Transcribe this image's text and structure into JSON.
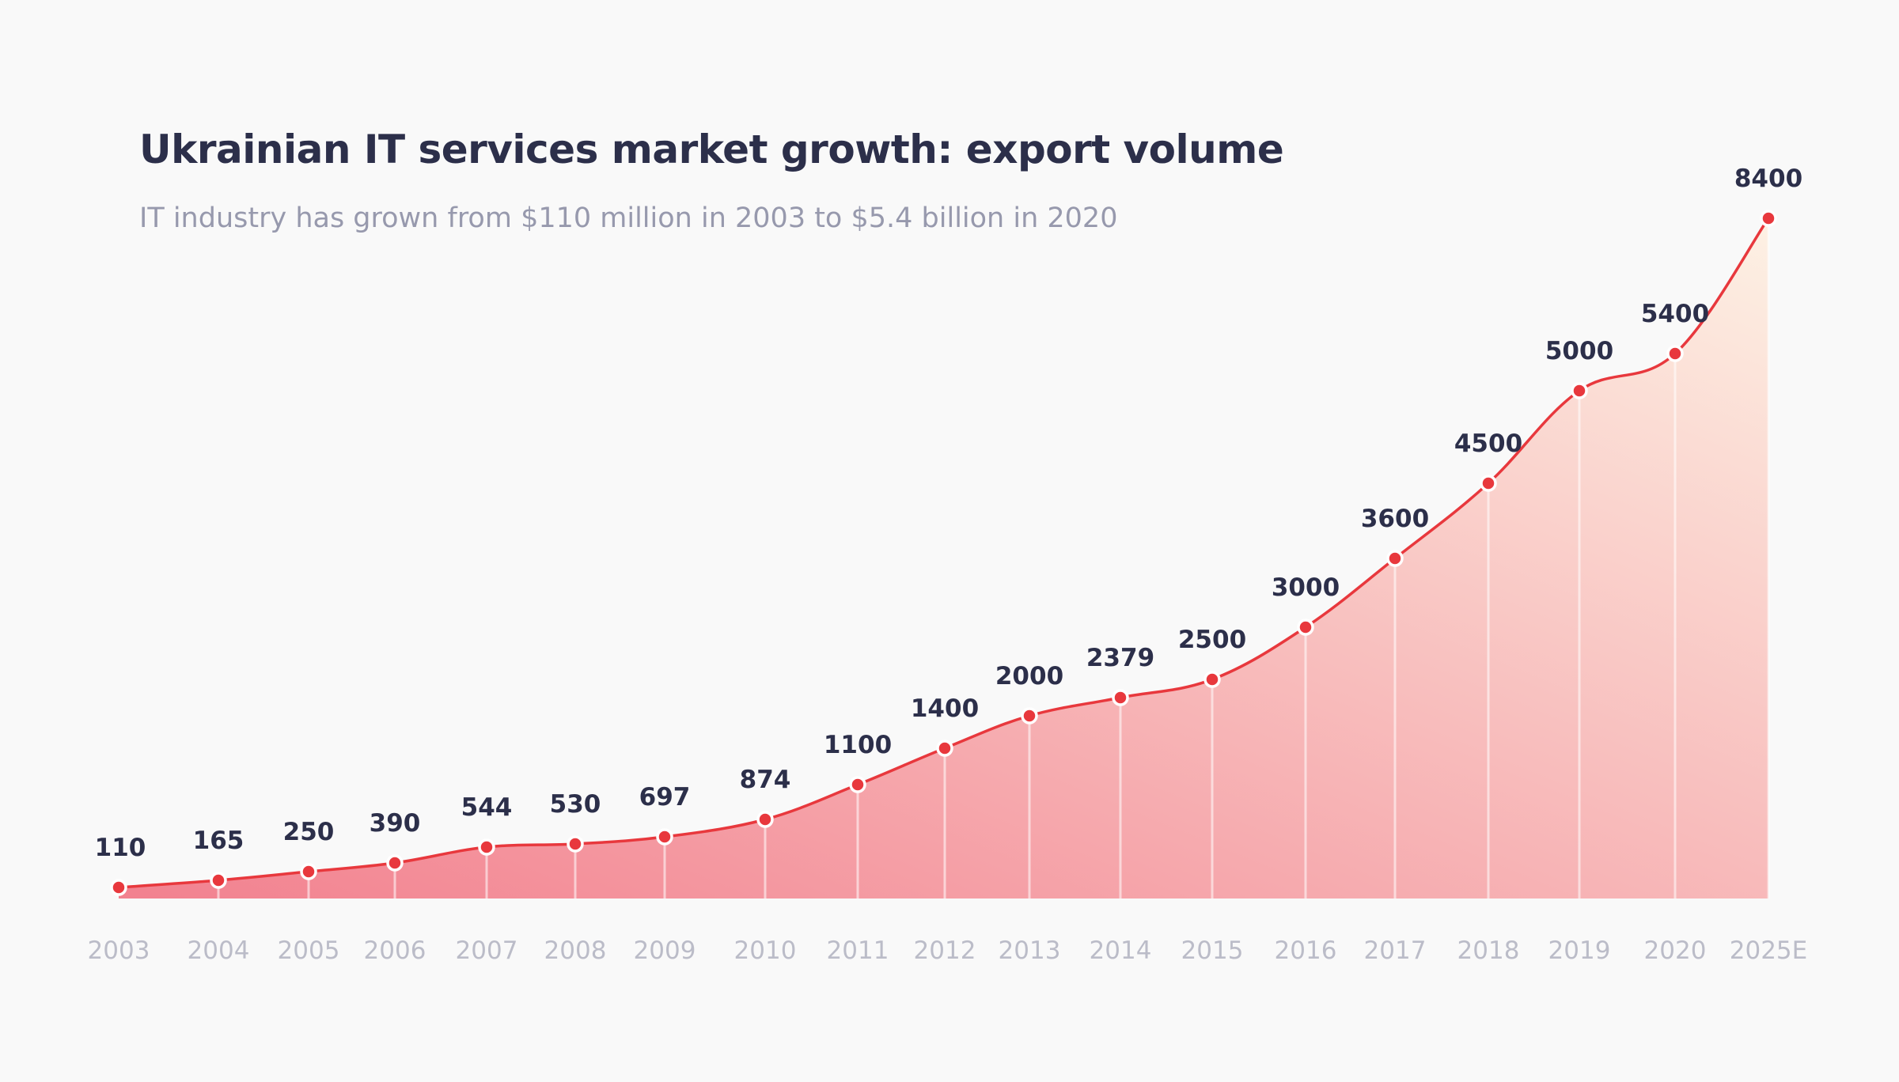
{
  "chart_data": {
    "type": "area",
    "title": "Ukrainian IT services market growth: export volume",
    "subtitle": "IT industry has grown from $110 million in 2003 to $5.4 billion in 2020",
    "categories": [
      "2003",
      "2004",
      "2005",
      "2006",
      "2007",
      "2008",
      "2009",
      "2010",
      "2011",
      "2012",
      "2013",
      "2014",
      "2015",
      "2016",
      "2017",
      "2018",
      "2019",
      "2020",
      "2025E"
    ],
    "values": [
      110,
      165,
      250,
      390,
      544,
      530,
      697,
      874,
      1100,
      1400,
      2000,
      2379,
      2500,
      3000,
      3600,
      4500,
      5000,
      5400,
      8400
    ],
    "data_labels": true,
    "grid": false,
    "legend": "none",
    "colors": {
      "line": "#e8383d",
      "marker": "#e8383d",
      "fill_start": "#f2818f",
      "fill_end": "#fdf1e4",
      "title": "#2c2f4a",
      "subtitle": "#9799ad",
      "tick": "#bbbcc8"
    }
  }
}
